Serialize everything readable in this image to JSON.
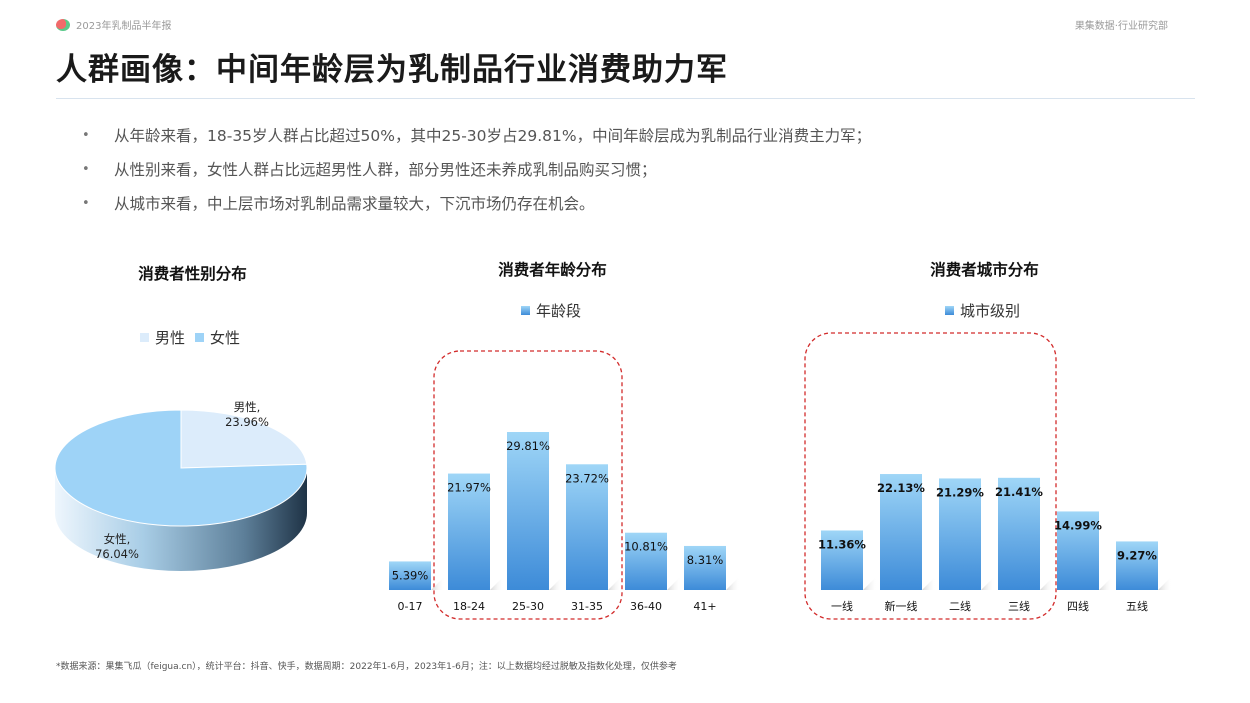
{
  "header": {
    "report_label": "2023年乳制品半年报",
    "dept_label": "果集数据·行业研究部"
  },
  "title": "人群画像：中间年龄层为乳制品行业消费助力军",
  "bullets": [
    "从年龄来看，18-35岁人群占比超过50%，其中25-30岁占29.81%，中间年龄层成为乳制品行业消费主力军；",
    "从性别来看，女性人群占比远超男性人群，部分男性还未养成乳制品购买习惯；",
    "从城市来看，中上层市场对乳制品需求量较大，下沉市场仍存在机会。"
  ],
  "bullet_marker": "•",
  "colors": {
    "female": "#9ed3f7",
    "male": "#dcecfb",
    "bar_top": "#9fd6f7",
    "bar_bottom": "#3d8bd8",
    "highlight_border": "#d22b2b"
  },
  "chart_data": [
    {
      "type": "pie",
      "title": "消费者性别分布",
      "legend_position": "top",
      "categories": [
        "男性",
        "女性"
      ],
      "values": [
        23.96,
        76.04
      ],
      "labels": [
        "男性,\n23.96%",
        "女性,\n76.04%"
      ]
    },
    {
      "type": "bar",
      "title": "消费者年龄分布",
      "legend_position": "top",
      "series": [
        {
          "name": "年龄段",
          "values": [
            5.39,
            21.97,
            29.81,
            23.72,
            10.81,
            8.31
          ]
        }
      ],
      "categories": [
        "0-17",
        "18-24",
        "25-30",
        "31-35",
        "36-40",
        "41+"
      ],
      "value_labels": [
        "5.39%",
        "21.97%",
        "29.81%",
        "23.72%",
        "10.81%",
        "8.31%"
      ],
      "highlighted": [
        "18-24",
        "25-30",
        "31-35"
      ],
      "grid": false
    },
    {
      "type": "bar",
      "title": "消费者城市分布",
      "legend_position": "top",
      "series": [
        {
          "name": "城市级别",
          "values": [
            11.36,
            22.13,
            21.29,
            21.41,
            14.99,
            9.27
          ]
        }
      ],
      "categories": [
        "一线",
        "新一线",
        "二线",
        "三线",
        "四线",
        "五线"
      ],
      "value_labels": [
        "11.36%",
        "22.13%",
        "21.29%",
        "21.41%",
        "14.99%",
        "9.27%"
      ],
      "highlighted": [
        "一线",
        "新一线",
        "二线",
        "三线"
      ],
      "grid": false
    }
  ],
  "footer": "*数据来源：果集飞瓜（feigua.cn），统计平台：抖音、快手，数据周期：2022年1-6月，2023年1-6月；注：以上数据均经过脱敏及指数化处理，仅供参考"
}
